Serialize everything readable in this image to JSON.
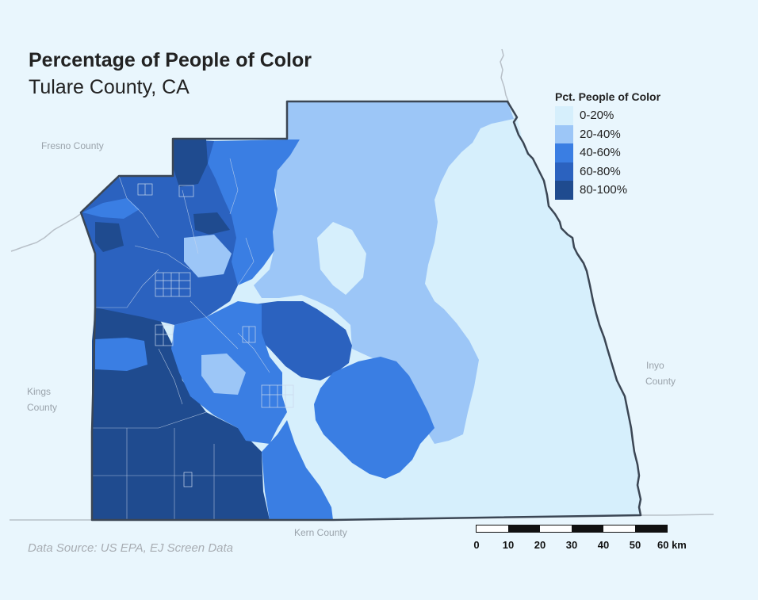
{
  "title": "Percentage of People of Color",
  "subtitle": "Tulare County, CA",
  "source": "Data Source: US EPA, EJ Screen Data",
  "legend": {
    "title": "Pct. People of Color",
    "items": [
      {
        "label": "0-20%",
        "color": "#d6effc"
      },
      {
        "label": "20-40%",
        "color": "#9cc6f7"
      },
      {
        "label": "40-60%",
        "color": "#3a7ee3"
      },
      {
        "label": "60-80%",
        "color": "#2b62bf"
      },
      {
        "label": "80-100%",
        "color": "#1f4b8f"
      }
    ]
  },
  "neighbors": {
    "fresno": "Fresno County",
    "kings_1": "Kings",
    "kings_2": "County",
    "inyo_1": "Inyo",
    "inyo_2": "County",
    "kern": "Kern County"
  },
  "scale": {
    "ticks": [
      "0",
      "10",
      "20",
      "30",
      "40",
      "50",
      "60 km"
    ]
  },
  "colors": {
    "background": "#e9f6fd",
    "county_outline": "#3b4654",
    "neighbor_border": "#b8c0c8"
  }
}
